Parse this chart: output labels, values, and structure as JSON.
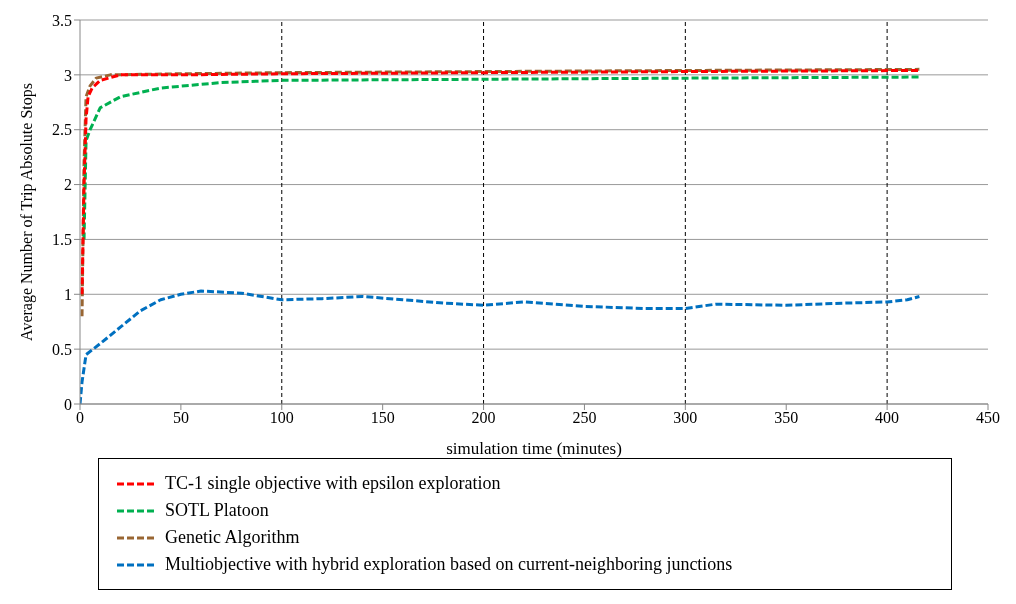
{
  "chart_data": {
    "type": "line",
    "xlabel": "simulation time (minutes)",
    "ylabel": "Average Number of Trip  Absolute Stops",
    "xlim": [
      0,
      450
    ],
    "xticks": [
      0,
      50,
      100,
      150,
      200,
      250,
      300,
      350,
      400,
      450
    ],
    "ylim": [
      0,
      3.5
    ],
    "yticks": [
      0,
      0.5,
      1,
      1.5,
      2,
      2.5,
      3,
      3.5
    ],
    "grid": "y",
    "legend": "bottom",
    "marker": "none",
    "line_style": "dashed",
    "ref_lines": [
      {
        "axis": "x",
        "value": 100,
        "color": "#000000",
        "line_style": "dashed"
      },
      {
        "axis": "x",
        "value": 200,
        "color": "#000000",
        "line_style": "dashed"
      },
      {
        "axis": "x",
        "value": 300,
        "color": "#000000",
        "line_style": "dashed"
      },
      {
        "axis": "x",
        "value": 400,
        "color": "#000000",
        "line_style": "dashed"
      }
    ],
    "series": [
      {
        "name": "TC-1 single objective with epsilon exploration",
        "color": "#ff0000",
        "x": [
          1,
          2,
          3,
          4,
          6,
          10,
          20,
          50,
          100,
          200,
          300,
          416
        ],
        "values": [
          1.0,
          2.0,
          2.6,
          2.8,
          2.88,
          2.95,
          3.0,
          3.0,
          3.01,
          3.02,
          3.03,
          3.04
        ]
      },
      {
        "name": "SOTL Platoon",
        "color": "#00b050",
        "x": [
          2,
          3,
          5,
          10,
          20,
          40,
          70,
          100,
          200,
          300,
          416
        ],
        "values": [
          1.5,
          2.4,
          2.5,
          2.7,
          2.8,
          2.88,
          2.93,
          2.95,
          2.96,
          2.97,
          2.98
        ]
      },
      {
        "name": "Genetic Algorithm",
        "color": "#996633",
        "x": [
          1,
          2,
          3,
          5,
          8,
          15,
          50,
          100,
          200,
          300,
          416
        ],
        "values": [
          0.8,
          2.2,
          2.8,
          2.9,
          2.97,
          3.0,
          3.01,
          3.02,
          3.03,
          3.04,
          3.05
        ]
      },
      {
        "name": "Multiobjective with hybrid exploration based on current-neighboring junctions",
        "color": "#0070c0",
        "x": [
          0,
          1,
          3,
          10,
          20,
          30,
          40,
          50,
          60,
          80,
          100,
          120,
          140,
          160,
          180,
          200,
          220,
          250,
          280,
          300,
          315,
          350,
          380,
          400,
          410,
          416
        ],
        "values": [
          0,
          0.2,
          0.45,
          0.55,
          0.7,
          0.85,
          0.95,
          1.0,
          1.03,
          1.01,
          0.95,
          0.96,
          0.98,
          0.95,
          0.92,
          0.9,
          0.93,
          0.89,
          0.87,
          0.87,
          0.91,
          0.9,
          0.92,
          0.93,
          0.95,
          0.98
        ]
      }
    ]
  }
}
